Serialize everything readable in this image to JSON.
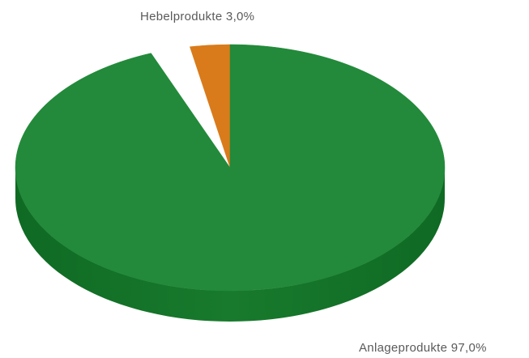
{
  "chart_data": {
    "type": "pie",
    "style": "3d",
    "slices": [
      {
        "label": "Hebelprodukte",
        "value": 3.0,
        "display": "Hebelprodukte 3,0%",
        "color": "#d97b1a",
        "side_color": "#b8620e"
      },
      {
        "label": "Anlageprodukte",
        "value": 97.0,
        "display": "Anlageprodukte 97,0%",
        "color": "#228a3a",
        "side_color": "#137227"
      }
    ]
  }
}
